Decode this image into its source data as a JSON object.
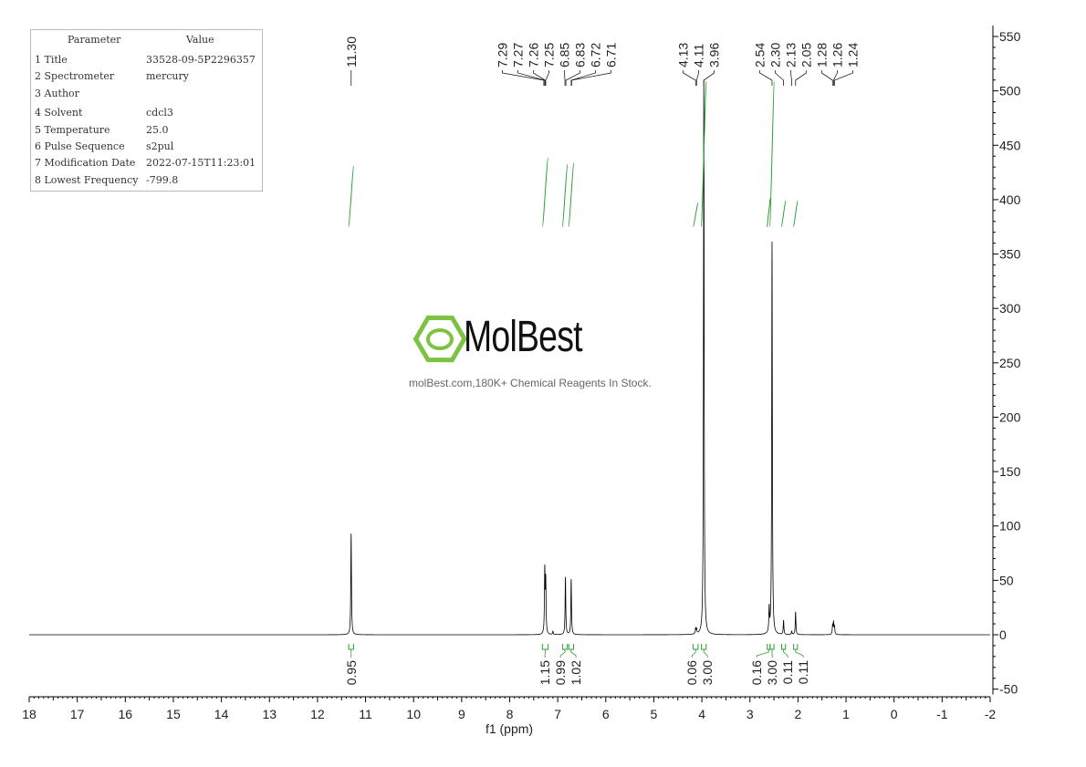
{
  "parameters": {
    "header": [
      "Parameter",
      "Value"
    ],
    "rows": [
      [
        "1 Title",
        "33528-09-5P2296357"
      ],
      [
        "2 Spectrometer",
        "mercury"
      ],
      [
        "3 Author",
        ""
      ],
      [
        "4 Solvent",
        "cdcl3"
      ],
      [
        "5 Temperature",
        "25.0"
      ],
      [
        "6 Pulse Sequence",
        "s2pul"
      ],
      [
        "7 Modification Date",
        "2022-07-15T11:23:01"
      ],
      [
        "8 Lowest Frequency",
        "-799.8"
      ]
    ]
  },
  "watermark": {
    "logo": "MolBest",
    "tagline": "molBest.com,180K+ Chemical Reagents In Stock.",
    "color": "#7dc242"
  },
  "chart_data": {
    "type": "line",
    "xlabel": "f1 (ppm)",
    "xlim": [
      18,
      -2
    ],
    "ylim": [
      -50,
      550
    ],
    "xticks": [
      18,
      17,
      16,
      15,
      14,
      13,
      12,
      11,
      10,
      9,
      8,
      7,
      6,
      5,
      4,
      3,
      2,
      1,
      0,
      -1,
      -2
    ],
    "yticks": [
      -50,
      0,
      50,
      100,
      150,
      200,
      250,
      300,
      350,
      400,
      450,
      500,
      550
    ],
    "line_color": "#000000",
    "integral_color": "#2ca02c",
    "peaks": [
      {
        "ppm": 11.3,
        "height": 93
      },
      {
        "ppm": 7.27,
        "height": 58
      },
      {
        "ppm": 7.25,
        "height": 48
      },
      {
        "ppm": 7.1,
        "height": 3
      },
      {
        "ppm": 6.84,
        "height": 53
      },
      {
        "ppm": 6.72,
        "height": 51
      },
      {
        "ppm": 4.13,
        "height": 5
      },
      {
        "ppm": 4.11,
        "height": 4
      },
      {
        "ppm": 3.96,
        "height": 510
      },
      {
        "ppm": 2.6,
        "height": 22
      },
      {
        "ppm": 2.54,
        "height": 361
      },
      {
        "ppm": 2.3,
        "height": 13
      },
      {
        "ppm": 2.13,
        "height": 3
      },
      {
        "ppm": 2.05,
        "height": 21
      },
      {
        "ppm": 1.28,
        "height": 8
      },
      {
        "ppm": 1.26,
        "height": 11
      },
      {
        "ppm": 1.24,
        "height": 7
      }
    ],
    "peak_label_groups": [
      {
        "labels": [
          "11.30"
        ],
        "anchor_ppm": 11.3
      },
      {
        "labels": [
          "7.29",
          "7.27",
          "7.26",
          "7.25"
        ],
        "anchor_ppm": 7.26
      },
      {
        "labels": [
          "6.85",
          "6.83",
          "6.72",
          "6.71"
        ],
        "anchor_ppm": 6.78
      },
      {
        "labels": [
          "4.13",
          "4.11",
          "3.96"
        ],
        "anchor_ppm": 4.04
      },
      {
        "labels": [
          "2.54",
          "2.30",
          "2.13",
          "2.05"
        ],
        "anchor_ppm": 2.3
      },
      {
        "labels": [
          "1.28",
          "1.26",
          "1.24"
        ],
        "anchor_ppm": 1.26
      }
    ],
    "integrals": [
      {
        "from": 11.35,
        "to": 11.25,
        "value": "0.95"
      },
      {
        "from": 7.32,
        "to": 7.2,
        "value": "1.15"
      },
      {
        "from": 6.9,
        "to": 6.8,
        "value": "0.99"
      },
      {
        "from": 6.77,
        "to": 6.67,
        "value": "1.02"
      },
      {
        "from": 4.18,
        "to": 4.08,
        "value": "0.06"
      },
      {
        "from": 4.01,
        "to": 3.91,
        "value": "3.00"
      },
      {
        "from": 2.64,
        "to": 2.58,
        "value": "0.16"
      },
      {
        "from": 2.58,
        "to": 2.5,
        "value": "3.00"
      },
      {
        "from": 2.34,
        "to": 2.26,
        "value": "0.11"
      },
      {
        "from": 2.09,
        "to": 2.01,
        "value": "0.11"
      }
    ]
  }
}
